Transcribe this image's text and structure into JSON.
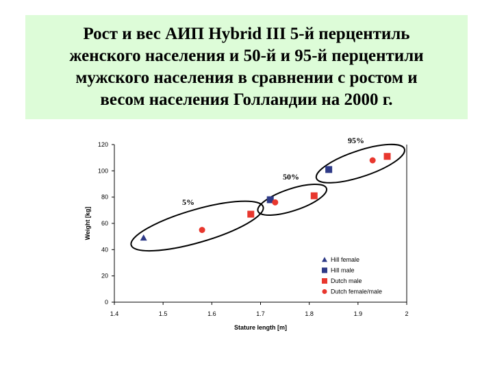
{
  "slide": {
    "title_lines": [
      "Рост и вес АИП Hybrid III  5-й перцентиль",
      "женского населения и 50-й и 95-й перцентили",
      "мужского населения в сравнении с ростом и",
      "весом населения Голландии на 2000 г."
    ]
  },
  "colors": {
    "title_bg": "#ddfcd8",
    "hill": "#2e3a87",
    "dutch": "#e8372e"
  },
  "chart_data": {
    "type": "scatter",
    "title": "",
    "xlabel": "Stature length [m]",
    "ylabel": "Weight [kg]",
    "xlim": [
      1.4,
      2.0
    ],
    "ylim": [
      0,
      120
    ],
    "x_ticks": [
      "1.4",
      "1.5",
      "1.6",
      "1.7",
      "1.8",
      "1.9",
      "2"
    ],
    "y_ticks": [
      "0",
      "20",
      "40",
      "60",
      "80",
      "100",
      "120"
    ],
    "grid": false,
    "legend_position": "bottom-right",
    "series": [
      {
        "name": "Hill female",
        "marker": "triangle",
        "color": "#2e3a87",
        "points": [
          [
            1.46,
            49
          ]
        ]
      },
      {
        "name": "Hill male",
        "marker": "square",
        "color": "#2e3a87",
        "points": [
          [
            1.72,
            78
          ],
          [
            1.84,
            101
          ]
        ]
      },
      {
        "name": "Dutch male",
        "marker": "square",
        "color": "#e8372e",
        "points": [
          [
            1.68,
            67
          ],
          [
            1.81,
            81
          ],
          [
            1.96,
            111
          ]
        ]
      },
      {
        "name": "Dutch female/male",
        "marker": "circle",
        "color": "#e8372e",
        "points": [
          [
            1.58,
            55
          ],
          [
            1.73,
            76
          ],
          [
            1.93,
            108
          ]
        ]
      }
    ],
    "groups": [
      {
        "label": "5%",
        "x_range": [
          1.44,
          1.7
        ],
        "y_range": [
          44,
          72
        ]
      },
      {
        "label": "50%",
        "x_range": [
          1.7,
          1.83
        ],
        "y_range": [
          70,
          86
        ]
      },
      {
        "label": "95%",
        "x_range": [
          1.82,
          1.99
        ],
        "y_range": [
          95,
          116
        ]
      }
    ]
  }
}
